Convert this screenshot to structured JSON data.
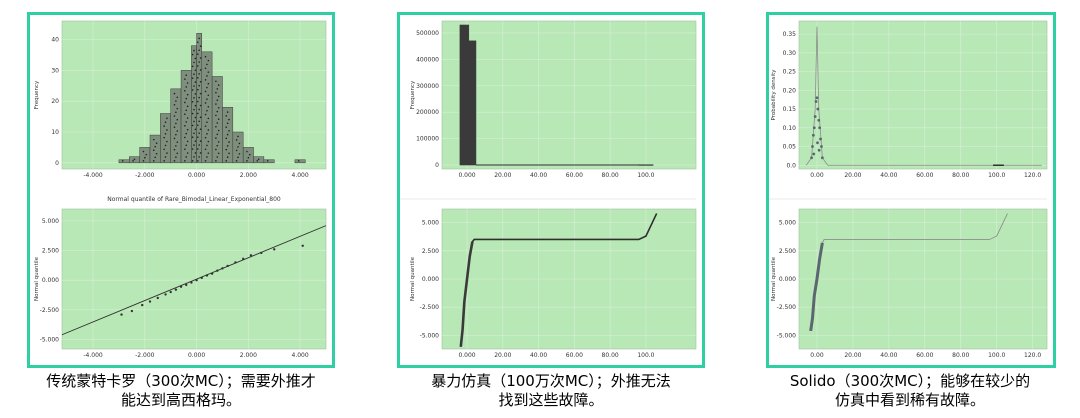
{
  "colors": {
    "panel_border": "#2ecfa2",
    "plot_bg": "#b9e8b7",
    "grid": "#d7efd4",
    "bar_fill": "#7f8f7d",
    "bar_edge": "#3b3b3b",
    "dark": "#3a3a3a",
    "point": "#5c6670",
    "line": "#2f2f2f"
  },
  "panels": [
    {
      "id": "traditional-mc",
      "caption": [
        "传统蒙特卡罗（300次MC）；需要外推才",
        "能达到高西格玛。"
      ],
      "top": {
        "type": "bar",
        "ylabel": "Frequency",
        "xlim": [
          -5.2,
          5.0
        ],
        "ylim": [
          -2,
          46
        ],
        "xticks": [
          -4,
          -2,
          0,
          2,
          4
        ],
        "xtick_labels": [
          "-4.000",
          "-2.000",
          "0.000",
          "2.000",
          "4.000"
        ],
        "yticks": [
          0,
          10,
          20,
          30,
          40
        ],
        "ytick_labels": [
          "0",
          "10",
          "20",
          "30",
          "40"
        ],
        "bars": [
          {
            "x0": -3.0,
            "x1": -2.6,
            "v": 1
          },
          {
            "x0": -2.6,
            "x1": -2.2,
            "v": 2
          },
          {
            "x0": -2.2,
            "x1": -1.8,
            "v": 5
          },
          {
            "x0": -1.8,
            "x1": -1.4,
            "v": 9
          },
          {
            "x0": -1.4,
            "x1": -1.0,
            "v": 16
          },
          {
            "x0": -1.0,
            "x1": -0.6,
            "v": 24
          },
          {
            "x0": -0.6,
            "x1": -0.2,
            "v": 30
          },
          {
            "x0": -0.2,
            "x1": 0.0,
            "v": 38
          },
          {
            "x0": 0.0,
            "x1": 0.2,
            "v": 42
          },
          {
            "x0": 0.2,
            "x1": 0.6,
            "v": 36
          },
          {
            "x0": 0.6,
            "x1": 1.0,
            "v": 28
          },
          {
            "x0": 1.0,
            "x1": 1.4,
            "v": 18
          },
          {
            "x0": 1.4,
            "x1": 1.8,
            "v": 10
          },
          {
            "x0": 1.8,
            "x1": 2.2,
            "v": 5
          },
          {
            "x0": 2.2,
            "x1": 2.6,
            "v": 2
          },
          {
            "x0": 2.6,
            "x1": 3.0,
            "v": 1
          },
          {
            "x0": 3.8,
            "x1": 4.2,
            "v": 1
          }
        ]
      },
      "bottom_title": "Normal quantile of Rare_Bimodal_Linear_Exponential_800",
      "bottom": {
        "type": "scatter",
        "ylabel": "Normal quantile",
        "xlim": [
          -5.2,
          5.0
        ],
        "ylim": [
          -5.8,
          6.0
        ],
        "xticks": [
          -4,
          -2,
          0,
          2,
          4
        ],
        "xtick_labels": [
          "-4.000",
          "-2.000",
          "0.000",
          "2.000",
          "4.000"
        ],
        "yticks": [
          -5,
          -2.5,
          0,
          2.5,
          5
        ],
        "ytick_labels": [
          "-5.000",
          "-2.500",
          "0.000",
          "2.500",
          "5.000"
        ],
        "fit_line": [
          [
            -5.2,
            -4.6
          ],
          [
            5.0,
            4.6
          ]
        ],
        "points": [
          [
            -2.9,
            -2.9
          ],
          [
            -2.5,
            -2.6
          ],
          [
            -2.1,
            -2.1
          ],
          [
            -1.8,
            -1.8
          ],
          [
            -1.5,
            -1.5
          ],
          [
            -1.2,
            -1.2
          ],
          [
            -1.0,
            -1.0
          ],
          [
            -0.8,
            -0.8
          ],
          [
            -0.6,
            -0.55
          ],
          [
            -0.4,
            -0.4
          ],
          [
            -0.2,
            -0.2
          ],
          [
            0.0,
            0.0
          ],
          [
            0.2,
            0.2
          ],
          [
            0.4,
            0.4
          ],
          [
            0.6,
            0.55
          ],
          [
            0.8,
            0.8
          ],
          [
            1.0,
            1.0
          ],
          [
            1.2,
            1.2
          ],
          [
            1.5,
            1.5
          ],
          [
            1.8,
            1.8
          ],
          [
            2.1,
            2.1
          ],
          [
            2.5,
            2.3
          ],
          [
            3.0,
            2.6
          ],
          [
            4.1,
            2.9
          ]
        ]
      }
    },
    {
      "id": "brute-force",
      "caption": [
        "暴力仿真（100万次MC）；外推无法",
        "找到这些故障。"
      ],
      "top": {
        "type": "bar",
        "ylabel": "Frequency",
        "xlim": [
          -14,
          128
        ],
        "ylim": [
          -15000,
          545000
        ],
        "xticks": [
          0,
          20,
          40,
          60,
          80,
          100
        ],
        "xtick_labels": [
          "0.000",
          "20.00",
          "40.00",
          "60.00",
          "80.00",
          "100.0"
        ],
        "yticks": [
          0,
          100000,
          200000,
          300000,
          400000,
          500000
        ],
        "ytick_labels": [
          "0",
          "100000",
          "200000",
          "300000",
          "400000",
          "500000"
        ],
        "bars": [
          {
            "x0": -4,
            "x1": 1,
            "v": 530000
          },
          {
            "x0": 1,
            "x1": 5,
            "v": 470000
          },
          {
            "x0": 96,
            "x1": 104,
            "v": 1500
          }
        ],
        "baseline_segment": [
          5,
          96
        ]
      },
      "bottom": {
        "type": "line",
        "ylabel": "Normal quantile",
        "xlim": [
          -14,
          128
        ],
        "ylim": [
          -6.2,
          6.2
        ],
        "xticks": [
          0,
          20,
          40,
          60,
          80,
          100
        ],
        "xtick_labels": [
          "0.000",
          "20.00",
          "40.00",
          "60.00",
          "80.00",
          "100.0"
        ],
        "yticks": [
          -5,
          -2.5,
          0,
          2.5,
          5
        ],
        "ytick_labels": [
          "-5.000",
          "-2.500",
          "0.000",
          "2.500",
          "5.000"
        ],
        "curve": [
          [
            -3.5,
            -6.0
          ],
          [
            -2.5,
            -4.5
          ],
          [
            -1.5,
            -2.0
          ],
          [
            0.0,
            0.0
          ],
          [
            1.5,
            2.0
          ],
          [
            3.0,
            3.3
          ],
          [
            4.0,
            3.5
          ],
          [
            96,
            3.5
          ],
          [
            100,
            3.8
          ],
          [
            103,
            4.8
          ],
          [
            106,
            5.8
          ]
        ]
      }
    },
    {
      "id": "solido",
      "caption": [
        "Solido（300次MC）；能够在较少的",
        "仿真中看到稀有故障。"
      ],
      "top": {
        "type": "density",
        "ylabel": "Probability density",
        "xlim": [
          -10,
          128
        ],
        "ylim": [
          -0.01,
          0.385
        ],
        "xticks": [
          0,
          20,
          40,
          60,
          80,
          100,
          120
        ],
        "xtick_labels": [
          "0.00",
          "20.00",
          "40.00",
          "60.00",
          "80.00",
          "100.0",
          "120.0"
        ],
        "yticks": [
          0,
          0.05,
          0.1,
          0.15,
          0.2,
          0.25,
          0.3,
          0.35
        ],
        "ytick_labels": [
          "0.0",
          "0.05",
          "0.10",
          "0.15",
          "0.20",
          "0.25",
          "0.30",
          "0.35"
        ],
        "density_curve": [
          [
            -6,
            0
          ],
          [
            -3,
            0.02
          ],
          [
            -1,
            0.15
          ],
          [
            0,
            0.37
          ],
          [
            1,
            0.15
          ],
          [
            3,
            0.02
          ],
          [
            6,
            0
          ],
          [
            125,
            0
          ]
        ],
        "points": [
          [
            -3,
            0.02
          ],
          [
            -2.5,
            0.05
          ],
          [
            -2,
            0.08
          ],
          [
            -1.5,
            0.1
          ],
          [
            -1,
            0.13
          ],
          [
            -0.5,
            0.17
          ],
          [
            0,
            0.18
          ],
          [
            0.5,
            0.15
          ],
          [
            1,
            0.12
          ],
          [
            1.5,
            0.1
          ],
          [
            2,
            0.07
          ],
          [
            2.5,
            0.05
          ],
          [
            3,
            0.02
          ],
          [
            -1.8,
            0.03
          ],
          [
            0.3,
            0.06
          ],
          [
            1.2,
            0.04
          ]
        ],
        "far_segment": [
          98,
          104
        ]
      },
      "bottom": {
        "type": "line",
        "ylabel": "Normal quantile",
        "xlim": [
          -10,
          128
        ],
        "ylim": [
          -6.2,
          6.2
        ],
        "xticks": [
          0,
          20,
          40,
          60,
          80,
          100,
          120
        ],
        "xtick_labels": [
          "0.00",
          "20.00",
          "40.00",
          "60.00",
          "80.00",
          "100.0",
          "120.0"
        ],
        "yticks": [
          -5,
          -2.5,
          0,
          2.5,
          5
        ],
        "ytick_labels": [
          "-5.000",
          "-2.500",
          "0.000",
          "2.500",
          "5.000"
        ],
        "curve": [
          [
            -3.5,
            -4.6
          ],
          [
            -2.5,
            -3.5
          ],
          [
            -1.5,
            -1.5
          ],
          [
            0.0,
            0.0
          ],
          [
            1.5,
            1.8
          ],
          [
            3.0,
            3.2
          ],
          [
            4.0,
            3.5
          ],
          [
            96,
            3.5
          ],
          [
            100,
            3.8
          ],
          [
            103,
            4.8
          ],
          [
            106,
            5.8
          ]
        ]
      }
    }
  ]
}
